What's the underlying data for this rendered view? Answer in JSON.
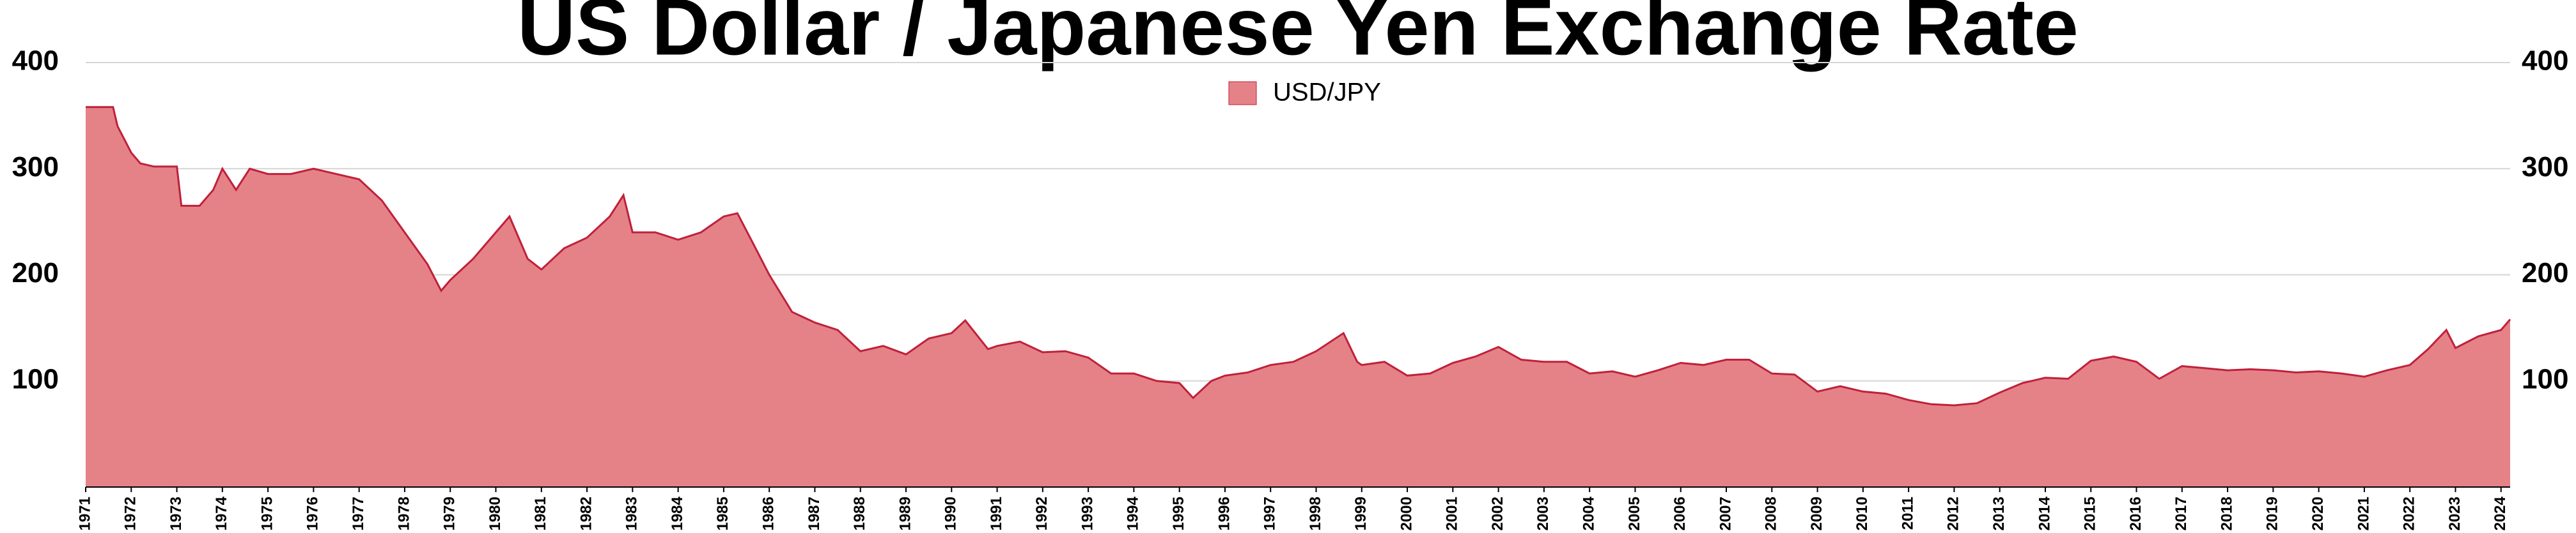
{
  "chart_data": {
    "type": "area",
    "title": "US Dollar / Japanese Yen Exchange Rate",
    "x": [
      1971.0,
      1971.6,
      1971.7,
      1972.0,
      1972.2,
      1972.5,
      1973.0,
      1973.1,
      1973.5,
      1973.8,
      1974.0,
      1974.3,
      1974.6,
      1975.0,
      1975.5,
      1976.0,
      1976.5,
      1977.0,
      1977.5,
      1978.0,
      1978.5,
      1978.8,
      1979.0,
      1979.5,
      1980.0,
      1980.3,
      1980.7,
      1981.0,
      1981.5,
      1982.0,
      1982.5,
      1982.8,
      1983.0,
      1983.5,
      1984.0,
      1984.5,
      1985.0,
      1985.3,
      1985.7,
      1986.0,
      1986.5,
      1987.0,
      1987.5,
      1988.0,
      1988.5,
      1989.0,
      1989.5,
      1990.0,
      1990.3,
      1990.8,
      1991.0,
      1991.5,
      1992.0,
      1992.5,
      1993.0,
      1993.5,
      1994.0,
      1994.5,
      1995.0,
      1995.3,
      1995.7,
      1996.0,
      1996.5,
      1997.0,
      1997.5,
      1998.0,
      1998.6,
      1998.9,
      1999.0,
      1999.5,
      2000.0,
      2000.5,
      2001.0,
      2001.5,
      2002.0,
      2002.5,
      2003.0,
      2003.5,
      2004.0,
      2004.5,
      2005.0,
      2005.5,
      2006.0,
      2006.5,
      2007.0,
      2007.5,
      2008.0,
      2008.5,
      2009.0,
      2009.5,
      2010.0,
      2010.5,
      2011.0,
      2011.5,
      2012.0,
      2012.5,
      2013.0,
      2013.5,
      2014.0,
      2014.5,
      2015.0,
      2015.5,
      2016.0,
      2016.5,
      2017.0,
      2017.5,
      2018.0,
      2018.5,
      2019.0,
      2019.5,
      2020.0,
      2020.5,
      2021.0,
      2021.5,
      2022.0,
      2022.4,
      2022.8,
      2023.0,
      2023.5,
      2024.0,
      2024.2
    ],
    "series": [
      {
        "name": "USD/JPY",
        "color": "#e48288",
        "edge_color": "#c0203a",
        "values": [
          358,
          358,
          340,
          315,
          305,
          302,
          302,
          265,
          265,
          280,
          300,
          280,
          300,
          295,
          295,
          300,
          295,
          290,
          270,
          240,
          210,
          185,
          195,
          215,
          240,
          255,
          215,
          205,
          225,
          235,
          255,
          275,
          240,
          240,
          233,
          240,
          255,
          258,
          225,
          200,
          165,
          155,
          148,
          128,
          133,
          125,
          140,
          145,
          157,
          130,
          133,
          137,
          127,
          128,
          122,
          107,
          107,
          100,
          98,
          84,
          100,
          105,
          108,
          115,
          118,
          128,
          145,
          118,
          115,
          118,
          105,
          107,
          117,
          123,
          132,
          120,
          118,
          118,
          107,
          109,
          104,
          110,
          117,
          115,
          120,
          120,
          107,
          106,
          90,
          95,
          90,
          88,
          82,
          78,
          77,
          79,
          89,
          98,
          103,
          102,
          119,
          123,
          118,
          102,
          114,
          112,
          110,
          111,
          110,
          108,
          109,
          107,
          104,
          110,
          115,
          130,
          148,
          131,
          142,
          148,
          158
        ]
      }
    ],
    "xlim": [
      1971,
      2024.2
    ],
    "xticks": [
      1971,
      1972,
      1973,
      1974,
      1975,
      1976,
      1977,
      1978,
      1979,
      1980,
      1981,
      1982,
      1983,
      1984,
      1985,
      1986,
      1987,
      1988,
      1989,
      1990,
      1991,
      1992,
      1993,
      1994,
      1995,
      1996,
      1997,
      1998,
      1999,
      2000,
      2001,
      2002,
      2003,
      2004,
      2005,
      2006,
      2007,
      2008,
      2009,
      2010,
      2011,
      2012,
      2013,
      2014,
      2015,
      2016,
      2017,
      2018,
      2019,
      2020,
      2021,
      2022,
      2023,
      2024
    ],
    "ylim": [
      0,
      400
    ],
    "yticks": [
      100,
      200,
      300,
      400
    ],
    "grid": true,
    "legend": "top"
  }
}
